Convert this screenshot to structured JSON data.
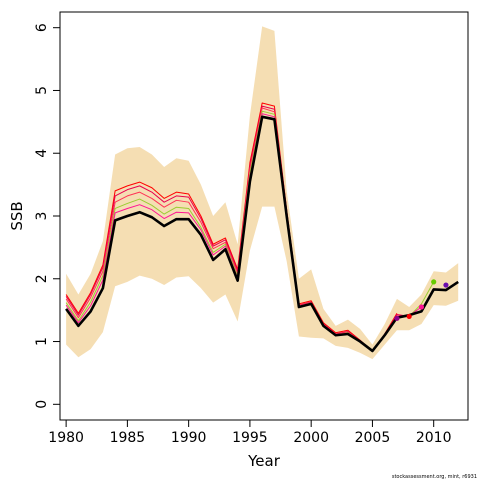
{
  "chart_data": {
    "type": "line",
    "xlabel": "Year",
    "ylabel": "SSB",
    "xlim": [
      1979.5,
      2012.8
    ],
    "ylim": [
      -0.25,
      6.25
    ],
    "x_ticks": [
      1980,
      1985,
      1990,
      1995,
      2000,
      2005,
      2010
    ],
    "y_ticks": [
      0,
      1,
      2,
      3,
      4,
      5,
      6
    ],
    "grid": false,
    "credit": "stockassessment.org, mint, r6931",
    "colors": {
      "band": "#f5deb3",
      "main": "#000000",
      "retro_1": "#ff0000",
      "retro_2": "#e8004e",
      "retro_3": "#ff3355",
      "retro_4": "#9acd32",
      "retro_5": "#ff1493",
      "pt_2007": "#8b008b",
      "pt_2008": "#ff0000",
      "pt_2009": "#ff1493",
      "pt_2010": "#66cc00",
      "pt_2011": "#6a0dad"
    },
    "confidence_band": {
      "x": [
        1980,
        1981,
        1982,
        1983,
        1984,
        1985,
        1986,
        1987,
        1988,
        1989,
        1990,
        1991,
        1992,
        1993,
        1994,
        1995,
        1996,
        1997,
        1998,
        1999,
        2000,
        2001,
        2002,
        2003,
        2004,
        2005,
        2006,
        2007,
        2008,
        2009,
        2010,
        2011,
        2012
      ],
      "upper": [
        2.08,
        1.75,
        2.08,
        2.6,
        3.98,
        4.08,
        4.1,
        3.98,
        3.78,
        3.92,
        3.88,
        3.5,
        3.0,
        3.22,
        2.55,
        4.6,
        6.02,
        5.95,
        3.4,
        2.0,
        2.15,
        1.52,
        1.25,
        1.35,
        1.2,
        0.95,
        1.28,
        1.68,
        1.55,
        1.75,
        2.12,
        2.1,
        2.25
      ],
      "lower": [
        0.95,
        0.75,
        0.88,
        1.15,
        1.88,
        1.95,
        2.05,
        2.0,
        1.9,
        2.02,
        2.04,
        1.85,
        1.62,
        1.75,
        1.32,
        2.45,
        3.15,
        3.15,
        2.28,
        1.08,
        1.06,
        1.05,
        0.93,
        0.9,
        0.82,
        0.72,
        0.95,
        1.18,
        1.18,
        1.28,
        1.58,
        1.57,
        1.65
      ]
    },
    "series": [
      {
        "color_key": "main",
        "x": [
          1980,
          1981,
          1982,
          1983,
          1984,
          1985,
          1986,
          1987,
          1988,
          1989,
          1990,
          1991,
          1992,
          1993,
          1994,
          1995,
          1996,
          1997,
          1998,
          1999,
          2000,
          2001,
          2002,
          2003,
          2004,
          2005,
          2006,
          2007,
          2008,
          2009,
          2010,
          2011,
          2012
        ],
        "values": [
          1.52,
          1.25,
          1.48,
          1.85,
          2.93,
          3.0,
          3.06,
          2.98,
          2.84,
          2.95,
          2.95,
          2.7,
          2.3,
          2.47,
          1.97,
          3.55,
          4.58,
          4.54,
          3.0,
          1.55,
          1.6,
          1.25,
          1.1,
          1.12,
          1.0,
          0.85,
          1.1,
          1.38,
          1.42,
          1.48,
          1.83,
          1.82,
          1.95
        ]
      },
      {
        "color_key": "retro_1",
        "x": [
          1980,
          1981,
          1982,
          1983,
          1984,
          1985,
          1986,
          1987,
          1988,
          1989,
          1990,
          1991,
          1992,
          1993,
          1994,
          1995,
          1996,
          1997,
          1998,
          1999,
          2000,
          2001,
          2002,
          2003,
          2004,
          2005,
          2006,
          2007
        ],
        "values": [
          1.75,
          1.45,
          1.78,
          2.22,
          3.4,
          3.48,
          3.54,
          3.45,
          3.28,
          3.38,
          3.35,
          3.0,
          2.55,
          2.65,
          2.15,
          3.85,
          4.8,
          4.75,
          3.1,
          1.6,
          1.65,
          1.3,
          1.14,
          1.18,
          1.02,
          0.85,
          1.12,
          1.45
        ]
      },
      {
        "color_key": "retro_2",
        "x": [
          1980,
          1981,
          1982,
          1983,
          1984,
          1985,
          1986,
          1987,
          1988,
          1989,
          1990,
          1991,
          1992,
          1993,
          1994,
          1995,
          1996,
          1997,
          1998,
          1999,
          2000,
          2001,
          2002,
          2003,
          2004,
          2005,
          2006,
          2007,
          2008
        ],
        "values": [
          1.72,
          1.42,
          1.75,
          2.18,
          3.32,
          3.42,
          3.48,
          3.38,
          3.22,
          3.32,
          3.3,
          2.96,
          2.52,
          2.62,
          2.12,
          3.8,
          4.75,
          4.7,
          3.08,
          1.58,
          1.63,
          1.28,
          1.12,
          1.16,
          1.01,
          0.85,
          1.11,
          1.43,
          1.4
        ]
      },
      {
        "color_key": "retro_3",
        "x": [
          1980,
          1981,
          1982,
          1983,
          1984,
          1985,
          1986,
          1987,
          1988,
          1989,
          1990,
          1991,
          1992,
          1993,
          1994,
          1995,
          1996,
          1997,
          1998,
          1999,
          2000,
          2001,
          2002,
          2003,
          2004,
          2005,
          2006,
          2007,
          2008
        ],
        "values": [
          1.68,
          1.38,
          1.7,
          2.12,
          3.22,
          3.32,
          3.38,
          3.28,
          3.14,
          3.25,
          3.22,
          2.9,
          2.48,
          2.58,
          2.08,
          3.75,
          4.72,
          4.66,
          3.06,
          1.57,
          1.62,
          1.27,
          1.11,
          1.15,
          1.0,
          0.85,
          1.1,
          1.41,
          1.39
        ]
      },
      {
        "color_key": "retro_4",
        "x": [
          1980,
          1981,
          1982,
          1983,
          1984,
          1985,
          1986,
          1987,
          1988,
          1989,
          1990,
          1991,
          1992,
          1993,
          1994,
          1995,
          1996,
          1997,
          1998,
          1999,
          2000,
          2001,
          2002,
          2003,
          2004,
          2005,
          2006,
          2007,
          2008,
          2009,
          2010
        ],
        "values": [
          1.62,
          1.33,
          1.63,
          2.05,
          3.12,
          3.2,
          3.27,
          3.17,
          3.03,
          3.14,
          3.12,
          2.82,
          2.42,
          2.55,
          2.04,
          3.68,
          4.67,
          4.62,
          3.04,
          1.56,
          1.61,
          1.26,
          1.1,
          1.14,
          1.0,
          0.85,
          1.1,
          1.4,
          1.4,
          1.6,
          1.95
        ]
      },
      {
        "color_key": "retro_5",
        "x": [
          1980,
          1981,
          1982,
          1983,
          1984,
          1985,
          1986,
          1987,
          1988,
          1989,
          1990,
          1991,
          1992,
          1993,
          1994,
          1995,
          1996,
          1997,
          1998,
          1999,
          2000,
          2001,
          2002,
          2003,
          2004,
          2005,
          2006,
          2007,
          2008,
          2009
        ],
        "values": [
          1.58,
          1.3,
          1.57,
          1.98,
          3.05,
          3.12,
          3.18,
          3.1,
          2.96,
          3.06,
          3.05,
          2.78,
          2.38,
          2.52,
          2.01,
          3.62,
          4.63,
          4.58,
          3.02,
          1.55,
          1.6,
          1.25,
          1.1,
          1.13,
          1.0,
          0.85,
          1.1,
          1.4,
          1.41,
          1.55
        ]
      }
    ],
    "endpoints": [
      {
        "x": 2007,
        "y": 1.37,
        "color_key": "pt_2007"
      },
      {
        "x": 2008,
        "y": 1.4,
        "color_key": "pt_2008"
      },
      {
        "x": 2009,
        "y": 1.55,
        "color_key": "pt_2009"
      },
      {
        "x": 2010,
        "y": 1.95,
        "color_key": "pt_2010"
      },
      {
        "x": 2011,
        "y": 1.9,
        "color_key": "pt_2011"
      }
    ]
  }
}
